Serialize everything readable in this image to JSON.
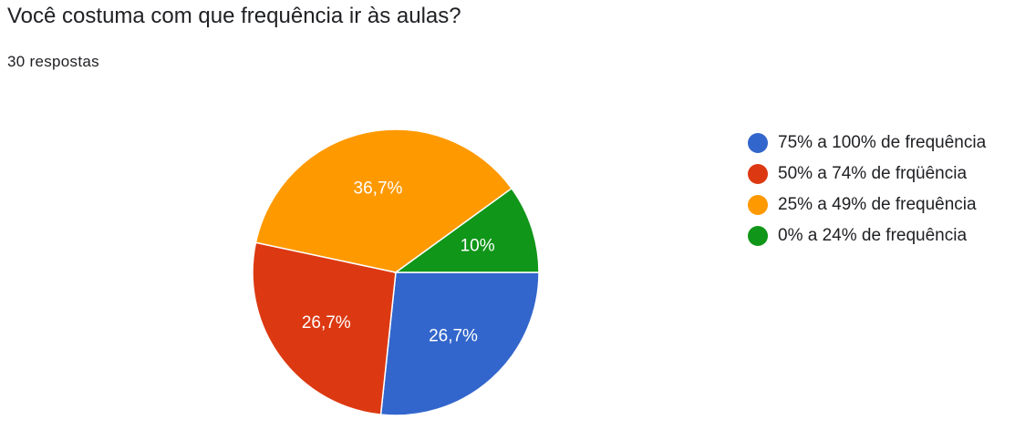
{
  "header": {
    "question": "Você costuma com que frequência ir às aulas?",
    "responses": "30 respostas"
  },
  "chart_data": {
    "type": "pie",
    "title": "",
    "slices": [
      {
        "label": "75% a 100% de frequência",
        "value": 26.7,
        "display": "26,7%",
        "color": "#3366cc"
      },
      {
        "label": "50% a 74% de frqüência",
        "value": 26.7,
        "display": "26,7%",
        "color": "#dc3912"
      },
      {
        "label": "25% a 49% de frequência",
        "value": 36.7,
        "display": "36,7%",
        "color": "#ff9900"
      },
      {
        "label": "0% a 24% de frequência",
        "value": 10,
        "display": "10%",
        "color": "#109618"
      }
    ],
    "legend_position": "right"
  }
}
